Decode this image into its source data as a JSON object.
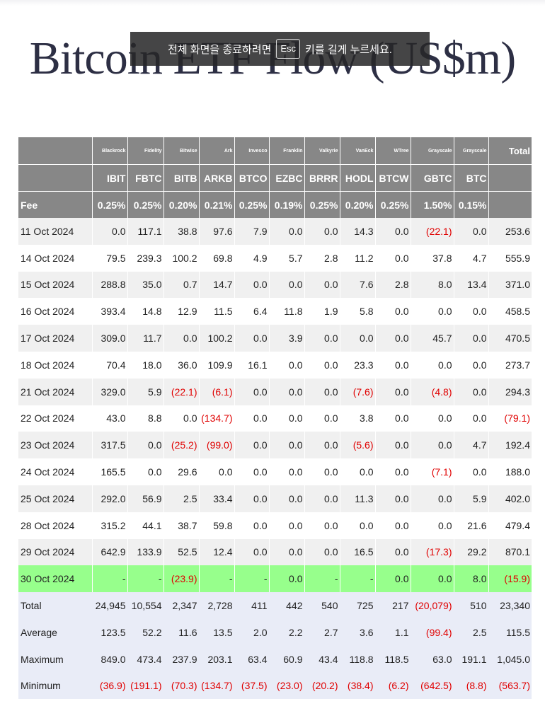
{
  "title": "Bitcoin ETF Flow (US$m)",
  "overlay": {
    "before": "전체 화면을 종료하려면",
    "key": "Esc",
    "after": "키를 길게 누르세요."
  },
  "header": {
    "issuers": [
      "",
      "Blackrock",
      "Fidelity",
      "Bitwise",
      "Ark",
      "Invesco",
      "Franklin",
      "Valkyrie",
      "VanEck",
      "WTree",
      "Grayscale",
      "Grayscale",
      "Total"
    ],
    "tickers": [
      "",
      "IBIT",
      "FBTC",
      "BITB",
      "ARKB",
      "BTCO",
      "EZBC",
      "BRRR",
      "HODL",
      "BTCW",
      "GBTC",
      "BTC",
      ""
    ],
    "fees": [
      "Fee",
      "0.25%",
      "0.25%",
      "0.20%",
      "0.21%",
      "0.25%",
      "0.19%",
      "0.25%",
      "0.20%",
      "0.25%",
      "1.50%",
      "0.15%",
      ""
    ]
  },
  "rows": [
    [
      "11 Oct 2024",
      "0.0",
      "117.1",
      "38.8",
      "97.6",
      "7.9",
      "0.0",
      "0.0",
      "14.3",
      "0.0",
      "(22.1)",
      "0.0",
      "253.6"
    ],
    [
      "14 Oct 2024",
      "79.5",
      "239.3",
      "100.2",
      "69.8",
      "4.9",
      "5.7",
      "2.8",
      "11.2",
      "0.0",
      "37.8",
      "4.7",
      "555.9"
    ],
    [
      "15 Oct 2024",
      "288.8",
      "35.0",
      "0.7",
      "14.7",
      "0.0",
      "0.0",
      "0.0",
      "7.6",
      "2.8",
      "8.0",
      "13.4",
      "371.0"
    ],
    [
      "16 Oct 2024",
      "393.4",
      "14.8",
      "12.9",
      "11.5",
      "6.4",
      "11.8",
      "1.9",
      "5.8",
      "0.0",
      "0.0",
      "0.0",
      "458.5"
    ],
    [
      "17 Oct 2024",
      "309.0",
      "11.7",
      "0.0",
      "100.2",
      "0.0",
      "3.9",
      "0.0",
      "0.0",
      "0.0",
      "45.7",
      "0.0",
      "470.5"
    ],
    [
      "18 Oct 2024",
      "70.4",
      "18.0",
      "36.0",
      "109.9",
      "16.1",
      "0.0",
      "0.0",
      "23.3",
      "0.0",
      "0.0",
      "0.0",
      "273.7"
    ],
    [
      "21 Oct 2024",
      "329.0",
      "5.9",
      "(22.1)",
      "(6.1)",
      "0.0",
      "0.0",
      "0.0",
      "(7.6)",
      "0.0",
      "(4.8)",
      "0.0",
      "294.3"
    ],
    [
      "22 Oct 2024",
      "43.0",
      "8.8",
      "0.0",
      "(134.7)",
      "0.0",
      "0.0",
      "0.0",
      "3.8",
      "0.0",
      "0.0",
      "0.0",
      "(79.1)"
    ],
    [
      "23 Oct 2024",
      "317.5",
      "0.0",
      "(25.2)",
      "(99.0)",
      "0.0",
      "0.0",
      "0.0",
      "(5.6)",
      "0.0",
      "0.0",
      "4.7",
      "192.4"
    ],
    [
      "24 Oct 2024",
      "165.5",
      "0.0",
      "29.6",
      "0.0",
      "0.0",
      "0.0",
      "0.0",
      "0.0",
      "0.0",
      "(7.1)",
      "0.0",
      "188.0"
    ],
    [
      "25 Oct 2024",
      "292.0",
      "56.9",
      "2.5",
      "33.4",
      "0.0",
      "0.0",
      "0.0",
      "11.3",
      "0.0",
      "0.0",
      "5.9",
      "402.0"
    ],
    [
      "28 Oct 2024",
      "315.2",
      "44.1",
      "38.7",
      "59.8",
      "0.0",
      "0.0",
      "0.0",
      "0.0",
      "0.0",
      "0.0",
      "21.6",
      "479.4"
    ],
    [
      "29 Oct 2024",
      "642.9",
      "133.9",
      "52.5",
      "12.4",
      "0.0",
      "0.0",
      "0.0",
      "16.5",
      "0.0",
      "(17.3)",
      "29.2",
      "870.1"
    ],
    [
      "30 Oct 2024",
      "-",
      "-",
      "(23.9)",
      "-",
      "-",
      "0.0",
      "-",
      "-",
      "0.0",
      "0.0",
      "8.0",
      "(15.9)"
    ]
  ],
  "summary": [
    [
      "Total",
      "24,945",
      "10,554",
      "2,347",
      "2,728",
      "411",
      "442",
      "540",
      "725",
      "217",
      "(20,079)",
      "510",
      "23,340"
    ],
    [
      "Average",
      "123.5",
      "52.2",
      "11.6",
      "13.5",
      "2.0",
      "2.2",
      "2.7",
      "3.6",
      "1.1",
      "(99.4)",
      "2.5",
      "115.5"
    ],
    [
      "Maximum",
      "849.0",
      "473.4",
      "237.9",
      "203.1",
      "63.4",
      "60.9",
      "43.4",
      "118.8",
      "118.5",
      "63.0",
      "191.1",
      "1,045.0"
    ],
    [
      "Minimum",
      "(36.9)",
      "(191.1)",
      "(70.3)",
      "(134.7)",
      "(37.5)",
      "(23.0)",
      "(20.2)",
      "(38.4)",
      "(6.2)",
      "(642.5)",
      "(8.8)",
      "(563.7)"
    ]
  ],
  "colors": {
    "header_bg": "#878787",
    "highlight_row": "#97ff8c",
    "summary_bg": "#e9ecf7",
    "negative": "#e00000"
  }
}
